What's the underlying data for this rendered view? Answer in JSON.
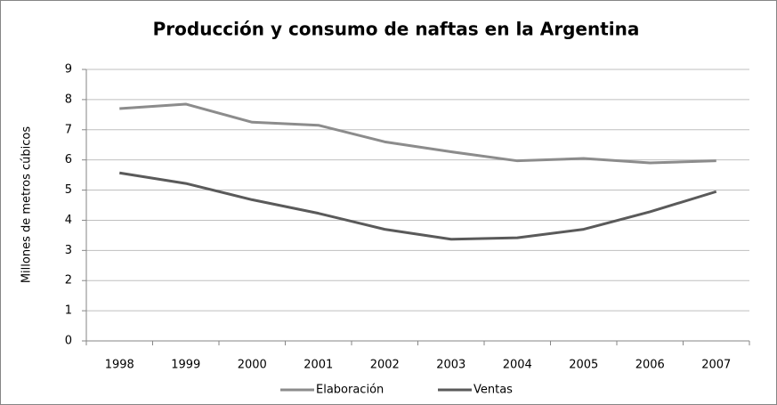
{
  "chart_data": {
    "type": "line",
    "title": "Producción y consumo de naftas en la Argentina",
    "y_label": "Millones de metros cúbicos",
    "categories": [
      "1998",
      "1999",
      "2000",
      "2001",
      "2002",
      "2003",
      "2004",
      "2005",
      "2006",
      "2007"
    ],
    "series": [
      {
        "name": "Elaboración",
        "color": "#8c8c8c",
        "values": [
          7.7,
          7.85,
          7.25,
          7.15,
          6.6,
          6.27,
          5.97,
          6.05,
          5.9,
          5.97
        ]
      },
      {
        "name": "Ventas",
        "color": "#5a5a5a",
        "values": [
          5.57,
          5.22,
          4.68,
          4.23,
          3.7,
          3.37,
          3.42,
          3.7,
          4.28,
          4.95
        ]
      }
    ],
    "ylim": [
      0,
      9
    ],
    "yticks": [
      0,
      1,
      2,
      3,
      4,
      5,
      6,
      7,
      8,
      9
    ],
    "grid": true,
    "legend": "bottom"
  }
}
